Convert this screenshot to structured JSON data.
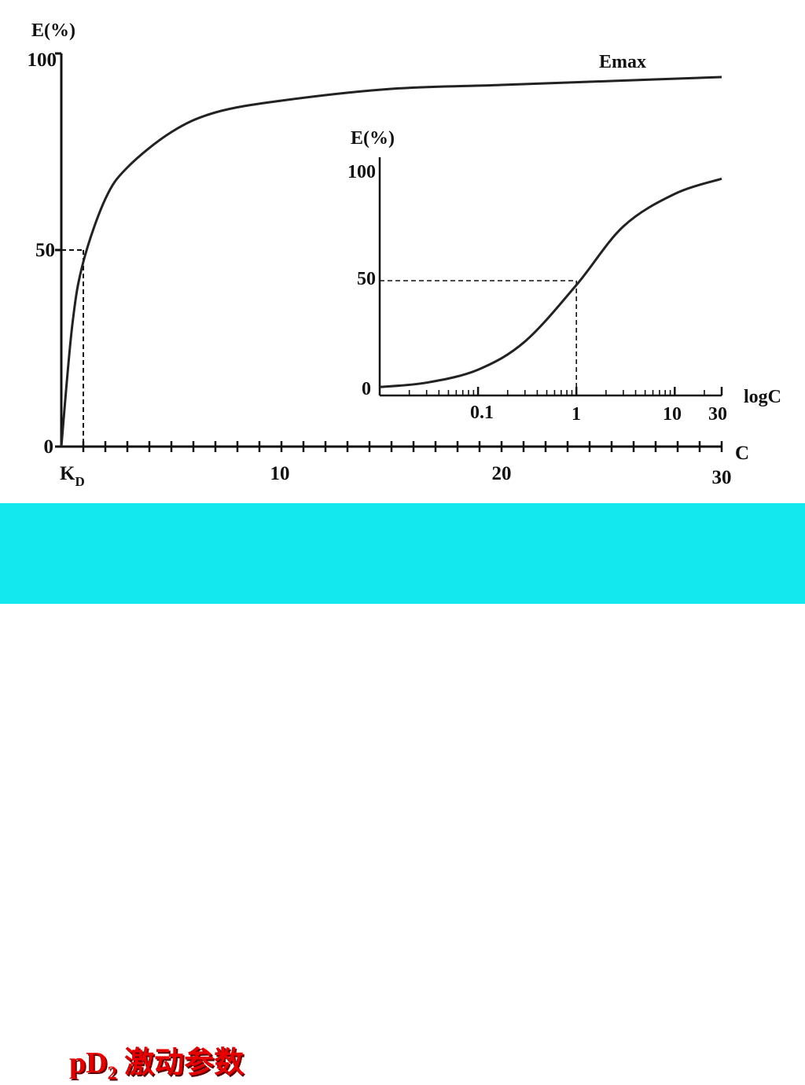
{
  "chart_data": [
    {
      "type": "line",
      "xlabel": "C",
      "ylabel": "E(%)",
      "xlim": [
        0,
        30
      ],
      "ylim": [
        0,
        100
      ],
      "x_tick_labels": [
        "10",
        "20",
        "30"
      ],
      "y_tick_labels": [
        "0",
        "50",
        "100"
      ],
      "kd_label": "K",
      "kd_sub": "D",
      "kd": 1,
      "curve_label": "Emax",
      "emax": 94,
      "series": [
        {
          "x": [
            0,
            0.5,
            1,
            2,
            3,
            5,
            7,
            10,
            15,
            20,
            25,
            30
          ],
          "y": [
            0,
            31,
            47,
            63,
            71,
            80,
            85,
            88,
            91,
            92,
            93,
            94
          ]
        }
      ],
      "reference": {
        "x": 1,
        "y": 50
      }
    },
    {
      "type": "line",
      "xlabel": "logC",
      "ylabel": "E(%)",
      "x_scale": "log",
      "xlim": [
        0.01,
        30
      ],
      "ylim": [
        0,
        100
      ],
      "x_tick_labels": [
        "0.1",
        "1",
        "10",
        "30"
      ],
      "y_tick_labels": [
        "0",
        "50",
        "100"
      ],
      "series": [
        {
          "x": [
            0.01,
            0.03,
            0.1,
            0.3,
            1,
            3,
            10,
            30
          ],
          "y": [
            1,
            3,
            9,
            22,
            48,
            75,
            90,
            97
          ]
        }
      ],
      "reference": {
        "x": 1,
        "y": 50
      }
    }
  ],
  "footer": {
    "caption_main": "pD",
    "caption_sub": "2",
    "caption_rest": " 激动参数"
  }
}
